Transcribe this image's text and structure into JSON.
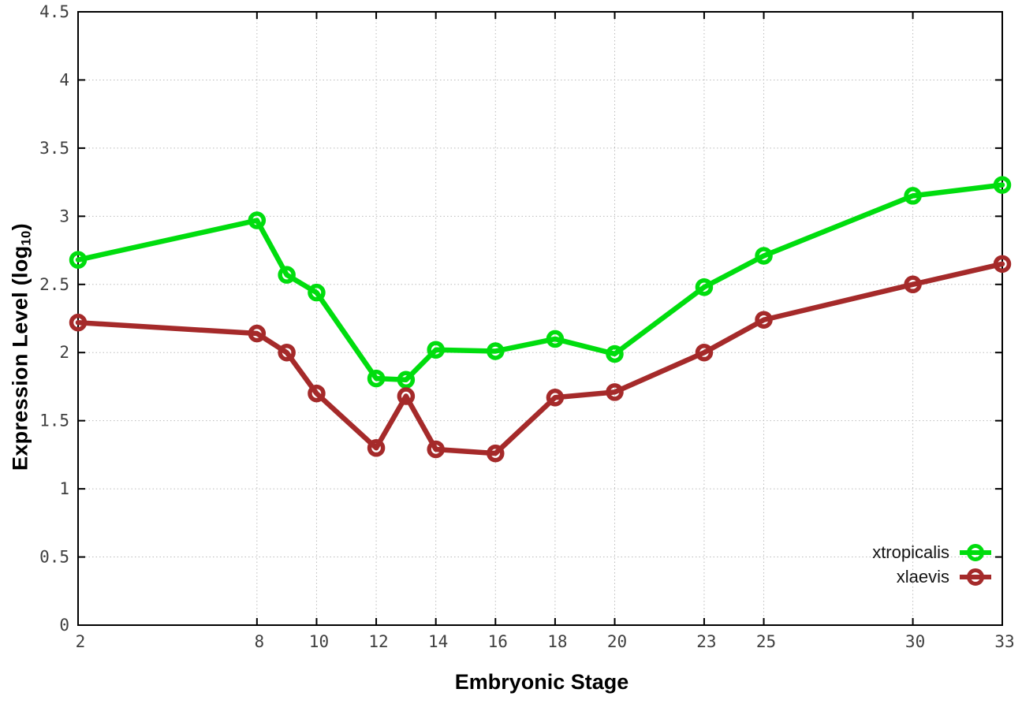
{
  "axes": {
    "x_label": "Embryonic Stage",
    "y_label_prefix": "Expression Level (log",
    "y_label_subscript": "10",
    "y_label_suffix": ")"
  },
  "colors": {
    "xtropicalis": "#00dd0e",
    "xlaevis": "#a52a2a",
    "axis": "#000000",
    "grid": "#bbbbbb",
    "tick_text": "#3f3f3f",
    "background": "#ffffff"
  },
  "chart_data": {
    "type": "line",
    "x": [
      2,
      8,
      9,
      10,
      12,
      13,
      14,
      16,
      18,
      20,
      23,
      25,
      30,
      33
    ],
    "series": [
      {
        "name": "xtropicalis",
        "color": "#00dd0e",
        "values": [
          2.68,
          2.97,
          2.57,
          2.44,
          1.81,
          1.8,
          2.02,
          2.01,
          2.1,
          1.99,
          2.48,
          2.71,
          3.15,
          3.23
        ]
      },
      {
        "name": "xlaevis",
        "color": "#a52a2a",
        "values": [
          2.22,
          2.14,
          2.0,
          1.7,
          1.3,
          1.68,
          1.29,
          1.26,
          1.67,
          1.71,
          2.0,
          2.24,
          2.5,
          2.65
        ]
      }
    ],
    "title": "",
    "xlabel": "Embryonic Stage",
    "ylabel": "Expression Level (log10)",
    "xlim": [
      2,
      33
    ],
    "ylim": [
      0,
      4.5
    ],
    "x_ticks": [
      2,
      8,
      10,
      12,
      14,
      16,
      18,
      20,
      23,
      25,
      30,
      33
    ],
    "y_ticks": [
      0,
      0.5,
      1,
      1.5,
      2,
      2.5,
      3,
      3.5,
      4,
      4.5
    ],
    "grid": true,
    "grid_style": "dotted",
    "legend_position": "bottom-right",
    "marker": "open-circle"
  }
}
